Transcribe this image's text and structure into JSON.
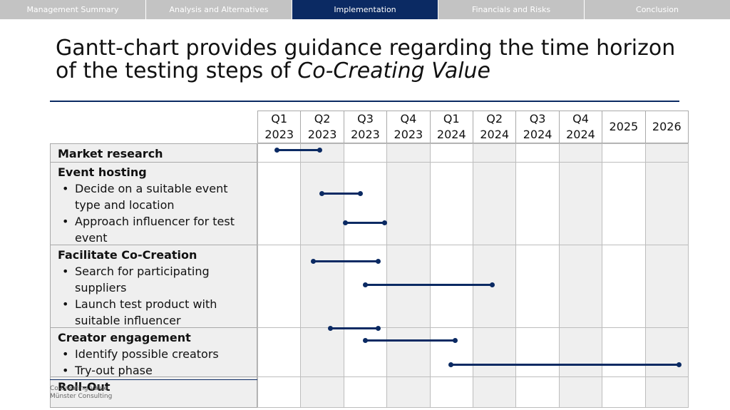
{
  "nav": {
    "tabs": [
      {
        "label": "Management Summary",
        "active": false
      },
      {
        "label": "Analysis and Alternatives",
        "active": false
      },
      {
        "label": "Implementation",
        "active": true
      },
      {
        "label": "Financials and Risks",
        "active": false
      },
      {
        "label": "Conclusion",
        "active": false
      }
    ]
  },
  "title": {
    "main": "Gantt-chart provides guidance regarding the time horizon of the testing steps of ",
    "italic": "Co-Creating Value"
  },
  "gantt": {
    "columns": [
      {
        "top": "Q1",
        "bottom": "2023"
      },
      {
        "top": "Q2",
        "bottom": "2023"
      },
      {
        "top": "Q3",
        "bottom": "2023"
      },
      {
        "top": "Q4",
        "bottom": "2023"
      },
      {
        "top": "Q1",
        "bottom": "2024"
      },
      {
        "top": "Q2",
        "bottom": "2024"
      },
      {
        "top": "Q3",
        "bottom": "2024"
      },
      {
        "top": "Q4",
        "bottom": "2024"
      },
      {
        "top": "2025",
        "bottom": ""
      },
      {
        "top": "2026",
        "bottom": ""
      }
    ],
    "rows": [
      {
        "heading": "Market research",
        "bullets": []
      },
      {
        "heading": "Event hosting",
        "bullets": [
          "Decide on a suitable event type and location",
          "Approach influencer for test event"
        ]
      },
      {
        "heading": "Facilitate Co-Creation",
        "bullets": [
          "Search for participating suppliers",
          "Launch test product with suitable influencer"
        ]
      },
      {
        "heading": "Creator engagement",
        "bullets": [
          "Identify possible creators",
          "Try-out phase"
        ]
      },
      {
        "heading": "Roll-Out",
        "bullets": []
      }
    ],
    "tasks": [
      {
        "task": "Market research",
        "start": 0.45,
        "end": 1.45
      },
      {
        "task": "Decide on a suitable event type and location",
        "start": 1.5,
        "end": 2.4
      },
      {
        "task": "Approach influencer for test event",
        "start": 2.05,
        "end": 2.95
      },
      {
        "task": "Search for participating suppliers",
        "start": 1.3,
        "end": 2.8
      },
      {
        "task": "Launch test product with suitable influencer",
        "start": 2.5,
        "end": 5.45
      },
      {
        "task": "Identify possible creators",
        "start": 1.7,
        "end": 2.8
      },
      {
        "task": "Try-out phase",
        "start": 2.5,
        "end": 4.6
      },
      {
        "task": "Creator engagement (extended)",
        "start": 4.5,
        "end": 9.8
      }
    ]
  },
  "footer": {
    "line1": "Co-Creating Value",
    "line2": "Münster Consulting"
  }
}
